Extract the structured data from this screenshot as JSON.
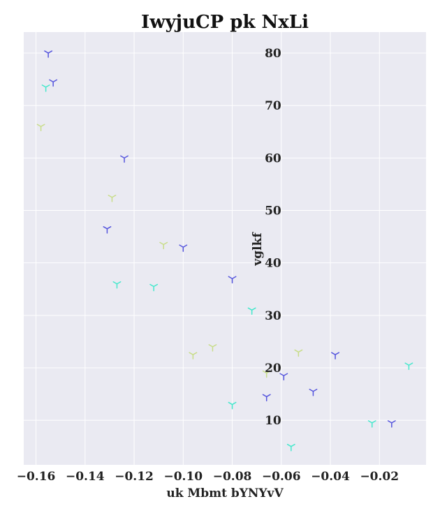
{
  "chart_data": {
    "type": "scatter",
    "title": "IwyjuCP pk NxLi",
    "xlabel": "uk Mbmt bYNYvV",
    "ylabel": "vglkf",
    "xlim": [
      -0.165,
      -0.001
    ],
    "ylim": [
      1.5,
      84
    ],
    "xticks": [
      -0.16,
      -0.14,
      -0.12,
      -0.1,
      -0.08,
      -0.06,
      -0.04,
      -0.02
    ],
    "xtick_labels": [
      "−0.16",
      "−0.14",
      "−0.12",
      "−0.10",
      "−0.08",
      "−0.06",
      "−0.04",
      "−0.02"
    ],
    "yticks": [
      10,
      20,
      30,
      40,
      50,
      60,
      70,
      80
    ],
    "ytick_labels": [
      "10",
      "20",
      "30",
      "40",
      "50",
      "60",
      "70",
      "80"
    ],
    "grid": true,
    "marker": "tri_down",
    "series": [
      {
        "color": "#5555dd",
        "points": [
          {
            "x": -0.155,
            "y": 80
          },
          {
            "x": -0.153,
            "y": 74.5
          },
          {
            "x": -0.124,
            "y": 60
          },
          {
            "x": -0.131,
            "y": 46.5
          },
          {
            "x": -0.1,
            "y": 43
          },
          {
            "x": -0.08,
            "y": 37
          },
          {
            "x": -0.038,
            "y": 22.5
          },
          {
            "x": -0.059,
            "y": 18.5
          },
          {
            "x": -0.047,
            "y": 15.5
          },
          {
            "x": -0.066,
            "y": 14.5
          },
          {
            "x": -0.015,
            "y": 9.5
          }
        ]
      },
      {
        "color": "#44e8cc",
        "points": [
          {
            "x": -0.156,
            "y": 73.5
          },
          {
            "x": -0.127,
            "y": 36
          },
          {
            "x": -0.112,
            "y": 35.5
          },
          {
            "x": -0.072,
            "y": 31
          },
          {
            "x": -0.008,
            "y": 20.5
          },
          {
            "x": -0.08,
            "y": 13
          },
          {
            "x": -0.023,
            "y": 9.5
          },
          {
            "x": -0.056,
            "y": 5
          }
        ]
      },
      {
        "color": "#c8dd88",
        "points": [
          {
            "x": -0.158,
            "y": 66
          },
          {
            "x": -0.129,
            "y": 52.5
          },
          {
            "x": -0.108,
            "y": 43.5
          },
          {
            "x": -0.088,
            "y": 24
          },
          {
            "x": -0.096,
            "y": 22.5
          },
          {
            "x": -0.053,
            "y": 23
          },
          {
            "x": -0.066,
            "y": 19
          }
        ]
      }
    ]
  }
}
